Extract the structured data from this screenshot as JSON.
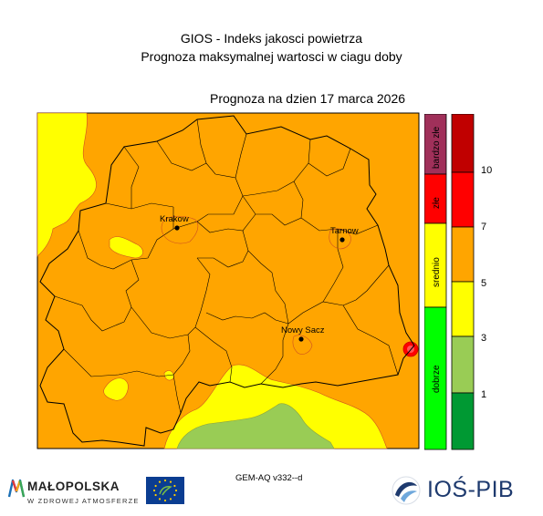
{
  "header": {
    "line1": "GIOS - Indeks jakosci powietrza",
    "line2": "Prognoza maksymalnej wartosci w ciagu doby",
    "date_label": "Prognoza na dzien  17 marca 2026"
  },
  "cities": [
    {
      "name": "Krakow"
    },
    {
      "name": "Tarnow"
    },
    {
      "name": "Nowy Sacz"
    }
  ],
  "legend": {
    "categories": [
      {
        "label": "bardzo złe",
        "color": "#a0305a"
      },
      {
        "label": "złe",
        "color": "#ff0000"
      },
      {
        "label": "srednio",
        "color": "#ffff00"
      },
      {
        "label": "dobrze",
        "color": "#00ff00"
      }
    ],
    "bands": [
      {
        "color": "#c00000"
      },
      {
        "color": "#ff0000"
      },
      {
        "color": "#ffa500"
      },
      {
        "color": "#ffff00"
      },
      {
        "color": "#99cc55"
      },
      {
        "color": "#009933"
      }
    ],
    "ticks": [
      "10",
      "7",
      "5",
      "3",
      "1"
    ]
  },
  "footer": {
    "model": "GEM-AQ v332--d",
    "sponsor_name": "MAŁOPOLSKA",
    "sponsor_tagline": "W ZDROWEJ ATMOSFERZE",
    "institute": "IOŚ-PIB"
  },
  "colors": {
    "orange": "#ffa500",
    "yellow": "#ffff00",
    "lightgreen": "#99cc55",
    "red": "#ff0000",
    "border": "#000000"
  }
}
